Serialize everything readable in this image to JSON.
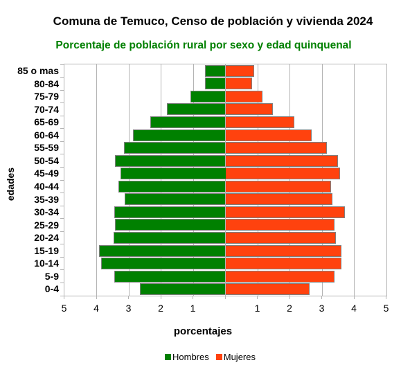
{
  "chart_data": {
    "type": "bar",
    "variant": "population-pyramid",
    "title": "Comuna de Temuco, Censo de población y vivienda 2024",
    "subtitle": "Porcentaje de población rural por sexo y edad quinquenal",
    "xlabel": "porcentajes",
    "ylabel": "edades",
    "categories": [
      "0-4",
      "5-9",
      "10-14",
      "15-19",
      "20-24",
      "25-29",
      "30-34",
      "35-39",
      "40-44",
      "45-49",
      "50-54",
      "55-59",
      "60-64",
      "65-69",
      "70-74",
      "75-79",
      "80-84",
      "85 o mas"
    ],
    "series": [
      {
        "name": "Hombres",
        "color": "#008000",
        "values": [
          2.65,
          3.45,
          3.86,
          3.92,
          3.48,
          3.44,
          3.45,
          3.13,
          3.33,
          3.25,
          3.44,
          3.15,
          2.87,
          2.34,
          1.82,
          1.09,
          0.63,
          0.63
        ]
      },
      {
        "name": "Mujeres",
        "color": "#ff420e",
        "values": [
          2.62,
          3.38,
          3.6,
          3.6,
          3.42,
          3.38,
          3.7,
          3.32,
          3.27,
          3.56,
          3.5,
          3.14,
          2.67,
          2.15,
          1.48,
          1.14,
          0.83,
          0.89
        ]
      }
    ],
    "xlim": [
      -5,
      5
    ],
    "xtick_labels": [
      "5",
      "4",
      "3",
      "2",
      "1",
      "1",
      "2",
      "3",
      "4",
      "5"
    ],
    "grid": true,
    "legend_position": "bottom"
  },
  "colors": {
    "grid": "#b3b3b3",
    "bar_border": "#808080",
    "title": "#000000",
    "subtitle": "#008000"
  }
}
